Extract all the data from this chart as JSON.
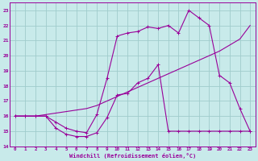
{
  "xlabel": "Windchill (Refroidissement éolien,°C)",
  "bg_color": "#c8eaea",
  "grid_color": "#a0cccc",
  "line_color": "#990099",
  "xlim": [
    -0.5,
    23.5
  ],
  "ylim": [
    14,
    23.5
  ],
  "xticks": [
    0,
    1,
    2,
    3,
    4,
    5,
    6,
    7,
    8,
    9,
    10,
    11,
    12,
    13,
    14,
    15,
    16,
    17,
    18,
    19,
    20,
    21,
    22,
    23
  ],
  "yticks": [
    14,
    15,
    16,
    17,
    18,
    19,
    20,
    21,
    22,
    23
  ],
  "line1_x": [
    0,
    1,
    2,
    3,
    4,
    5,
    6,
    7,
    8,
    9,
    10,
    11,
    12,
    13,
    14,
    15,
    16,
    17,
    18,
    19,
    20,
    21,
    22,
    23
  ],
  "line1_y": [
    16,
    16,
    16,
    16,
    15.2,
    14.8,
    14.65,
    14.65,
    14.9,
    15.9,
    17.4,
    17.5,
    18.2,
    18.5,
    19.4,
    15,
    15,
    15,
    15,
    15,
    15,
    15,
    15,
    15
  ],
  "line2_x": [
    0,
    1,
    2,
    3,
    4,
    5,
    6,
    7,
    8,
    9,
    10,
    11,
    12,
    13,
    14,
    15,
    16,
    17,
    18,
    19,
    20,
    21,
    22,
    23
  ],
  "line2_y": [
    16,
    16,
    16,
    16.1,
    16.2,
    16.3,
    16.4,
    16.5,
    16.7,
    17.0,
    17.3,
    17.6,
    17.9,
    18.2,
    18.5,
    18.8,
    19.1,
    19.4,
    19.7,
    20.0,
    20.3,
    20.7,
    21.1,
    22.0
  ],
  "line3_x": [
    0,
    1,
    2,
    3,
    4,
    5,
    6,
    7,
    8,
    9,
    10,
    11,
    12,
    13,
    14,
    15,
    16,
    17,
    18,
    19,
    20,
    21,
    22,
    23
  ],
  "line3_y": [
    16,
    16,
    16,
    16,
    15.6,
    15.2,
    15.0,
    14.9,
    16.1,
    18.5,
    21.3,
    21.5,
    21.6,
    21.9,
    21.8,
    22.0,
    21.5,
    23.0,
    22.5,
    22.0,
    18.7,
    18.2,
    16.5,
    15.0
  ]
}
